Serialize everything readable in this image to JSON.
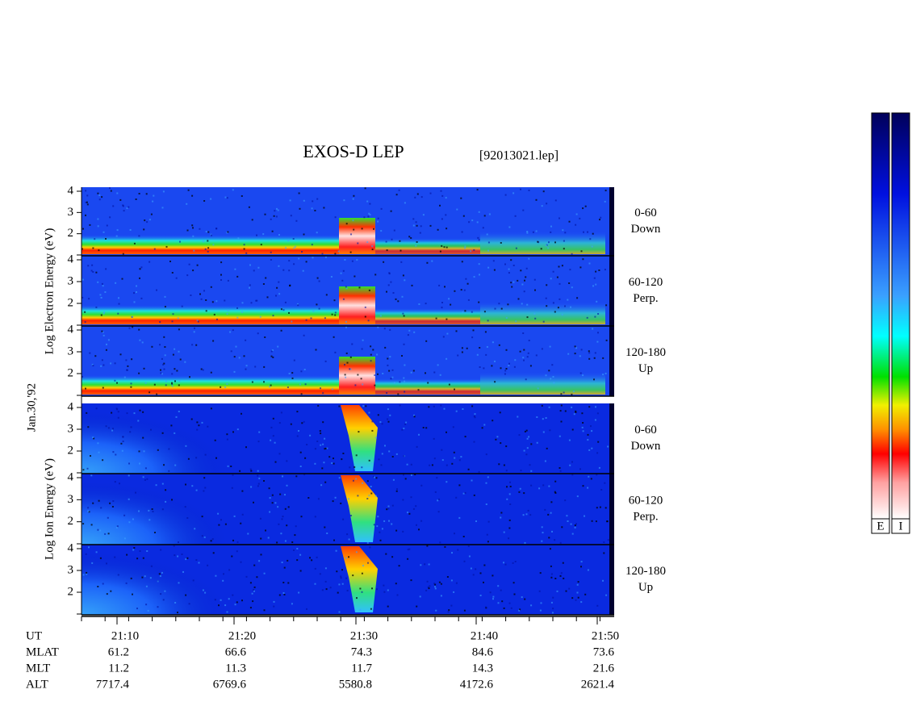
{
  "header": {
    "title": "EXOS-D LEP",
    "file": "[92013021.lep]"
  },
  "left_labels": {
    "electron": "Log Electron Energy (eV)",
    "date": "Jan.30,'92",
    "ion": "Log Ion Energy (eV)"
  },
  "panels": [
    {
      "angle": "0-60",
      "direction": "Down",
      "ticks": [
        2,
        3,
        4
      ]
    },
    {
      "angle": "60-120",
      "direction": "Perp.",
      "ticks": [
        2,
        3,
        4
      ]
    },
    {
      "angle": "120-180",
      "direction": "Up",
      "ticks": [
        2,
        3,
        4
      ]
    },
    {
      "angle": "0-60",
      "direction": "Down",
      "ticks": [
        2,
        3,
        4
      ]
    },
    {
      "angle": "60-120",
      "direction": "Perp.",
      "ticks": [
        2,
        3,
        4
      ]
    },
    {
      "angle": "120-180",
      "direction": "Up",
      "ticks": [
        2,
        3,
        4
      ]
    }
  ],
  "ephemeris": [
    {
      "label": "UT",
      "values": [
        "21:10",
        "21:20",
        "21:30",
        "21:40",
        "21:50"
      ]
    },
    {
      "label": "MLAT",
      "values": [
        61.2,
        66.6,
        74.3,
        84.6,
        73.6
      ]
    },
    {
      "label": "MLT",
      "values": [
        11.2,
        11.3,
        11.7,
        14.3,
        21.6
      ]
    },
    {
      "label": "ALT",
      "values": [
        7717.4,
        6769.6,
        5580.8,
        4172.6,
        2621.4
      ]
    }
  ],
  "colorbar": {
    "labels": [
      "E",
      "I"
    ]
  }
}
